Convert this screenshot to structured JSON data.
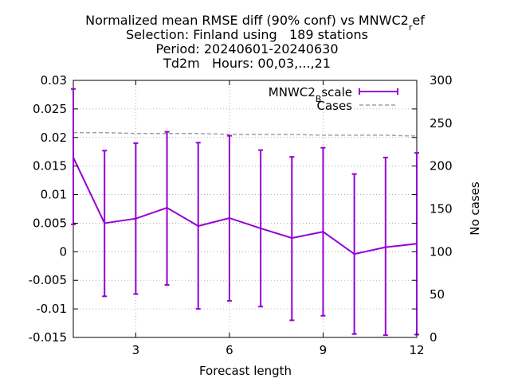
{
  "chart_data": {
    "type": "line",
    "title_lines": [
      "Normalized mean RMSE diff (90% conf) vs MNWC2",
      "Selection: Finland using   189 stations",
      "Period: 20240601-20240630",
      "Td2m   Hours: 00,03,...,21"
    ],
    "title_sub": "r",
    "title_tail": "ef",
    "xlabel": "Forecast length",
    "ylabel": "",
    "y2label": "No cases",
    "xlim": [
      1,
      12
    ],
    "ylim": [
      -0.015,
      0.03
    ],
    "y2lim": [
      0,
      300
    ],
    "xticks": [
      "3",
      "6",
      "9",
      "12"
    ],
    "xtick_values": [
      3,
      6,
      9,
      12
    ],
    "yticks": [
      "0.03",
      "0.025",
      "0.02",
      "0.015",
      "0.01",
      "0.005",
      "0",
      "-0.005",
      "-0.01",
      "-0.015"
    ],
    "ytick_values": [
      0.03,
      0.025,
      0.02,
      0.015,
      0.01,
      0.005,
      0,
      -0.005,
      -0.01,
      -0.015
    ],
    "y2ticks": [
      "300",
      "250",
      "200",
      "150",
      "100",
      "50",
      "0"
    ],
    "y2tick_values": [
      300,
      250,
      200,
      150,
      100,
      50,
      0
    ],
    "grid": true,
    "legend_position": "top-right",
    "series": [
      {
        "name": "MNWC2",
        "name_sub": "B",
        "name_tail": "scale",
        "color": "#9400d3",
        "axis": "y",
        "x": [
          1,
          2,
          3,
          4,
          5,
          6,
          7,
          8,
          9,
          10,
          11,
          12
        ],
        "values": [
          0.0165,
          0.005,
          0.0058,
          0.0077,
          0.0045,
          0.0059,
          0.0041,
          0.0024,
          0.0035,
          -0.0004,
          0.0008,
          0.0014
        ],
        "lower": [
          0.0048,
          -0.0078,
          -0.0074,
          -0.0058,
          -0.01,
          -0.0086,
          -0.0096,
          -0.012,
          -0.0112,
          -0.0144,
          -0.0146,
          -0.0145
        ],
        "upper": [
          0.0285,
          0.0177,
          0.019,
          0.021,
          0.0191,
          0.0203,
          0.0178,
          0.0166,
          0.0182,
          0.0136,
          0.0165,
          0.0173
        ]
      },
      {
        "name": "Cases",
        "color": "#a0a0a0",
        "axis": "y2",
        "x": [
          1,
          2,
          3,
          4,
          5,
          6,
          7,
          8,
          9,
          10,
          11,
          12
        ],
        "values": [
          239,
          239,
          238,
          238,
          238,
          237,
          237,
          237,
          236,
          236,
          236,
          235
        ]
      }
    ]
  }
}
